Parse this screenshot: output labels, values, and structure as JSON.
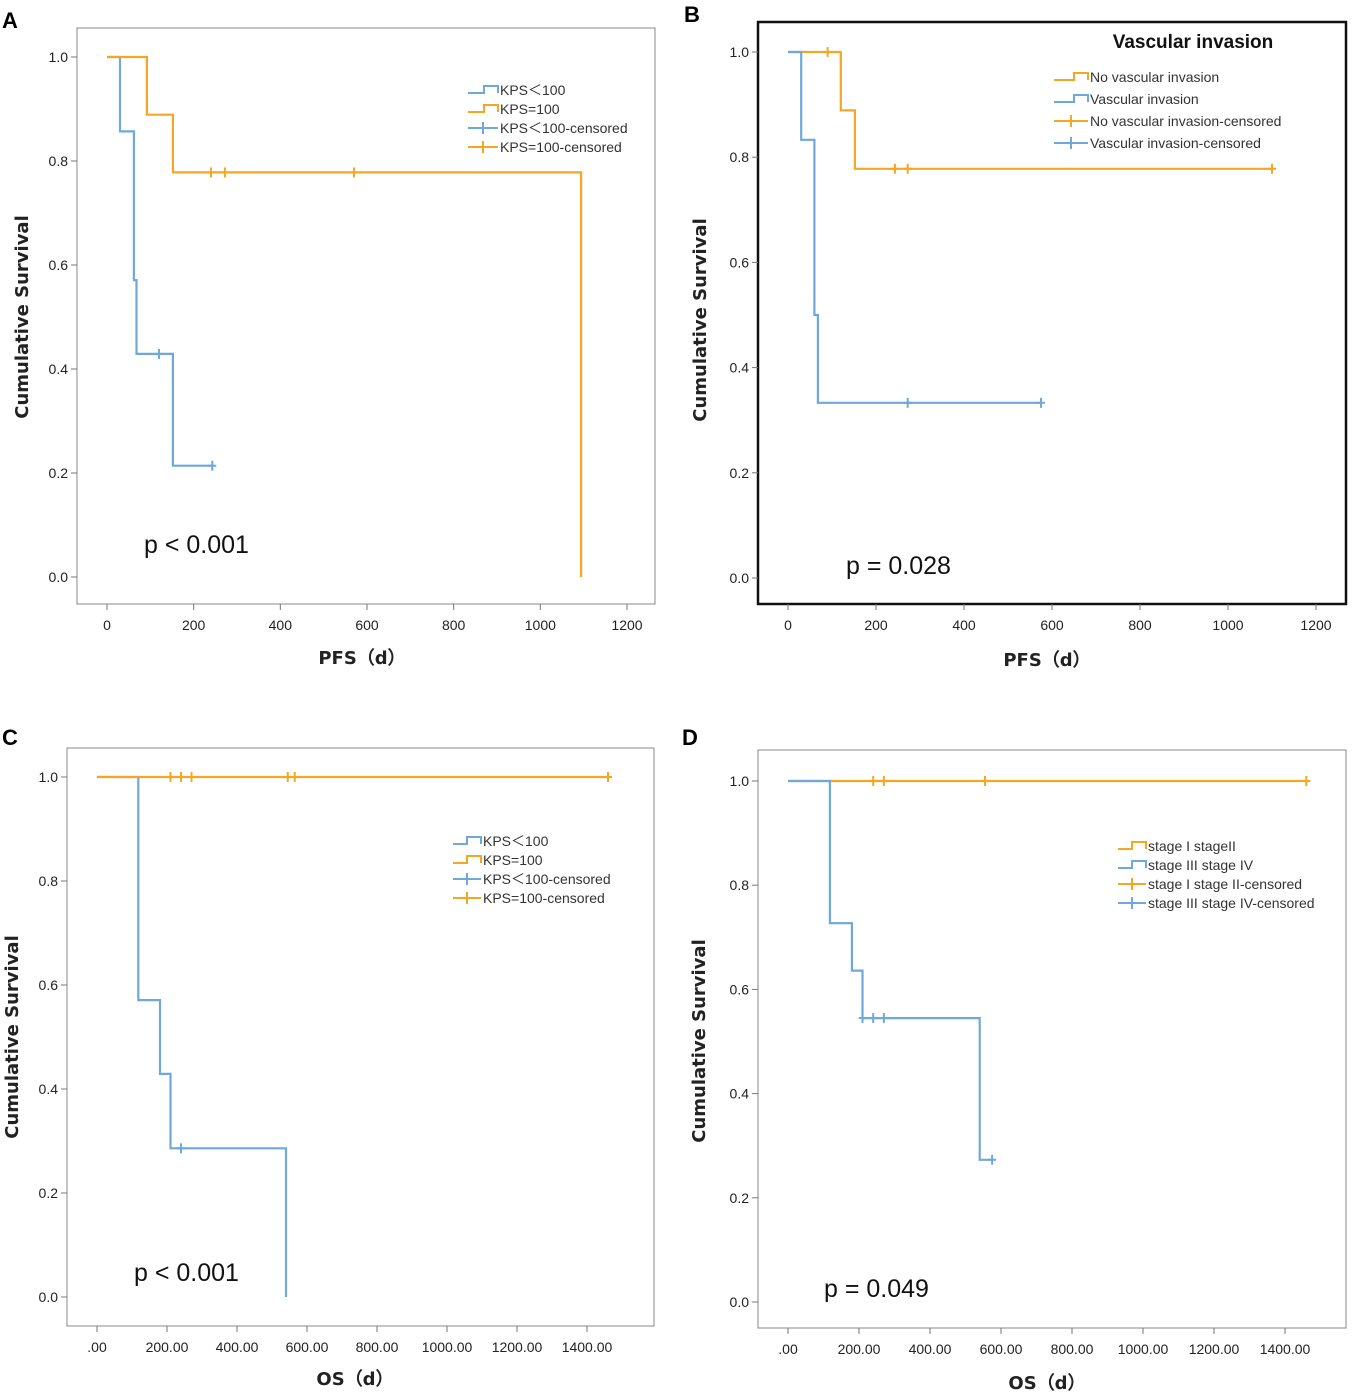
{
  "chart_data": [
    {
      "panel": "A",
      "type": "line",
      "subtype": "kaplan-meier",
      "xlabel": "PFS（d）",
      "ylabel": "Cumulative Survival",
      "xlim": [
        0,
        1200
      ],
      "ylim": [
        0,
        1
      ],
      "xticks": [
        0,
        200,
        400,
        600,
        800,
        1000,
        1200
      ],
      "xtick_labels": [
        "0",
        "200",
        "400",
        "600",
        "800",
        "1000",
        "1200"
      ],
      "yticks": [
        0,
        0.2,
        0.4,
        0.6,
        0.8,
        1.0
      ],
      "ytick_labels": [
        "0.0",
        "0.2",
        "0.4",
        "0.6",
        "0.8",
        "1.0"
      ],
      "p_value": "p < 0.001",
      "legend_title": "",
      "legend_position": "top-right",
      "legend": [
        "KPS＜100",
        "KPS=100",
        "KPS＜100-censored",
        "KPS=100-censored"
      ],
      "series": [
        {
          "name": "KPS＜100",
          "color": "#6fa8dc",
          "x": [
            0,
            30,
            30,
            62,
            62,
            68,
            68,
            152,
            152,
            243
          ],
          "y": [
            1.0,
            1.0,
            0.857,
            0.857,
            0.571,
            0.571,
            0.429,
            0.429,
            0.214,
            0.214
          ],
          "censored": [
            [
              120,
              0.429
            ],
            [
              243,
              0.214
            ]
          ]
        },
        {
          "name": "KPS=100",
          "color": "#f5a623",
          "x": [
            0,
            92,
            92,
            152,
            152,
            1094,
            1094
          ],
          "y": [
            1.0,
            1.0,
            0.889,
            0.889,
            0.778,
            0.778,
            0.0
          ],
          "censored": [
            [
              240,
              0.778
            ],
            [
              272,
              0.778
            ],
            [
              570,
              0.778
            ]
          ]
        }
      ]
    },
    {
      "panel": "B",
      "type": "line",
      "subtype": "kaplan-meier",
      "xlabel": "PFS（d）",
      "ylabel": "Cumulative Survival",
      "xlim": [
        0,
        1200
      ],
      "ylim": [
        0,
        1
      ],
      "xticks": [
        0,
        200,
        400,
        600,
        800,
        1000,
        1200
      ],
      "xtick_labels": [
        "0",
        "200",
        "400",
        "600",
        "800",
        "1000",
        "1200"
      ],
      "yticks": [
        0,
        0.2,
        0.4,
        0.6,
        0.8,
        1.0
      ],
      "ytick_labels": [
        "0.0",
        "0.2",
        "0.4",
        "0.6",
        "0.8",
        "1.0"
      ],
      "p_value": "p = 0.028",
      "legend_title": "Vascular invasion",
      "legend_position": "top-right",
      "legend": [
        "No vascular invasion",
        "Vascular invasion",
        "No vascular invasion-censored",
        "Vascular invasion-censored"
      ],
      "series": [
        {
          "name": "No vascular invasion",
          "color": "#f5a623",
          "x": [
            0,
            120,
            120,
            152,
            152,
            1100
          ],
          "y": [
            1.0,
            1.0,
            0.889,
            0.889,
            0.778,
            0.778
          ],
          "censored": [
            [
              90,
              1.0
            ],
            [
              243,
              0.778
            ],
            [
              272,
              0.778
            ],
            [
              1100,
              0.778
            ]
          ]
        },
        {
          "name": "Vascular invasion",
          "color": "#6fa8dc",
          "x": [
            0,
            30,
            30,
            60,
            60,
            68,
            68,
            575
          ],
          "y": [
            1.0,
            1.0,
            0.833,
            0.833,
            0.5,
            0.5,
            0.333,
            0.333
          ],
          "censored": [
            [
              272,
              0.333
            ],
            [
              575,
              0.333
            ]
          ]
        }
      ]
    },
    {
      "panel": "C",
      "type": "line",
      "subtype": "kaplan-meier",
      "xlabel": "OS（d）",
      "ylabel": "Cumulative Survival",
      "xlim": [
        0,
        1400
      ],
      "ylim": [
        0,
        1
      ],
      "xticks": [
        0,
        200,
        400,
        600,
        800,
        1000,
        1200,
        1400
      ],
      "xtick_labels": [
        ".00",
        "200.00",
        "400.00",
        "600.00",
        "800.00",
        "1000.00",
        "1200.00",
        "1400.00"
      ],
      "yticks": [
        0,
        0.2,
        0.4,
        0.6,
        0.8,
        1.0
      ],
      "ytick_labels": [
        "0.0",
        "0.2",
        "0.4",
        "0.6",
        "0.8",
        "1.0"
      ],
      "p_value": "p < 0.001",
      "legend_title": "",
      "legend_position": "top-right",
      "legend": [
        "KPS＜100",
        "KPS=100",
        "KPS＜100-censored",
        "KPS=100-censored"
      ],
      "series": [
        {
          "name": "KPS＜100",
          "color": "#6fa8dc",
          "x": [
            0,
            118,
            118,
            180,
            180,
            210,
            210,
            540,
            540
          ],
          "y": [
            1.0,
            1.0,
            0.571,
            0.571,
            0.429,
            0.429,
            0.286,
            0.286,
            0.0
          ],
          "censored": [
            [
              240,
              0.286
            ]
          ]
        },
        {
          "name": "KPS=100",
          "color": "#f5a623",
          "x": [
            0,
            1460
          ],
          "y": [
            1.0,
            1.0
          ],
          "censored": [
            [
              210,
              1.0
            ],
            [
              240,
              1.0
            ],
            [
              270,
              1.0
            ],
            [
              545,
              1.0
            ],
            [
              565,
              1.0
            ],
            [
              1460,
              1.0
            ]
          ]
        }
      ]
    },
    {
      "panel": "D",
      "type": "line",
      "subtype": "kaplan-meier",
      "xlabel": "OS（d）",
      "ylabel": "Cumulative Survival",
      "xlim": [
        0,
        1400
      ],
      "ylim": [
        0,
        1
      ],
      "xticks": [
        0,
        200,
        400,
        600,
        800,
        1000,
        1200,
        1400
      ],
      "xtick_labels": [
        ".00",
        "200.00",
        "400.00",
        "600.00",
        "800.00",
        "1000.00",
        "1200.00",
        "1400.00"
      ],
      "yticks": [
        0,
        0.2,
        0.4,
        0.6,
        0.8,
        1.0
      ],
      "ytick_labels": [
        "0.0",
        "0.2",
        "0.4",
        "0.6",
        "0.8",
        "1.0"
      ],
      "p_value": "p = 0.049",
      "legend_title": "",
      "legend_position": "top-right",
      "legend": [
        "stage I stageII",
        "stage III stage IV",
        "stage I stage II-censored",
        "stage III stage IV-censored"
      ],
      "series": [
        {
          "name": "stage I stageII",
          "color": "#f5a623",
          "x": [
            0,
            1460
          ],
          "y": [
            1.0,
            1.0
          ],
          "censored": [
            [
              240,
              1.0
            ],
            [
              270,
              1.0
            ],
            [
              555,
              1.0
            ],
            [
              1460,
              1.0
            ]
          ]
        },
        {
          "name": "stage III stage IV",
          "color": "#6fa8dc",
          "x": [
            0,
            118,
            118,
            180,
            180,
            210,
            210,
            540,
            540,
            575
          ],
          "y": [
            1.0,
            1.0,
            0.727,
            0.727,
            0.636,
            0.636,
            0.545,
            0.545,
            0.273,
            0.273
          ],
          "censored": [
            [
              210,
              0.545
            ],
            [
              240,
              0.545
            ],
            [
              270,
              0.545
            ],
            [
              575,
              0.273
            ]
          ]
        }
      ]
    }
  ]
}
